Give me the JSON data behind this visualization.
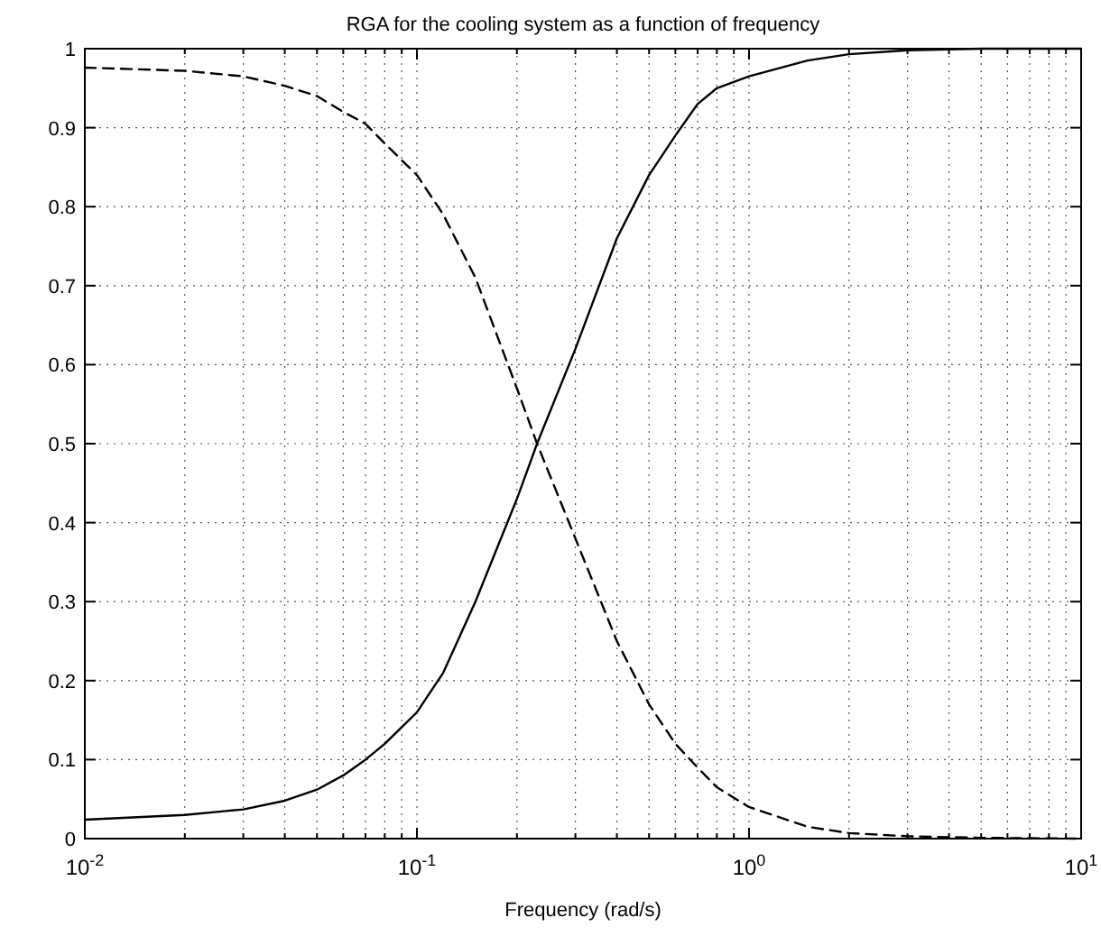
{
  "chart_data": {
    "type": "line",
    "title": "RGA for the cooling system as a function of frequency",
    "xlabel": "Frequency (rad/s)",
    "log": "x",
    "grid": true,
    "xlim": [
      0.01,
      10
    ],
    "ylim": [
      0,
      1
    ],
    "xticks": [
      {
        "value": 0.01,
        "label": "10$^{-2}$"
      },
      {
        "value": 0.02,
        "label": null
      },
      {
        "value": 0.03,
        "label": null
      },
      {
        "value": 0.04,
        "label": null
      },
      {
        "value": 0.05,
        "label": null
      },
      {
        "value": 0.06,
        "label": null
      },
      {
        "value": 0.07,
        "label": null
      },
      {
        "value": 0.08,
        "label": null
      },
      {
        "value": 0.09,
        "label": null
      },
      {
        "value": 0.1,
        "label": "10$^{-1}$"
      },
      {
        "value": 0.2,
        "label": null
      },
      {
        "value": 0.3,
        "label": null
      },
      {
        "value": 0.4,
        "label": null
      },
      {
        "value": 0.5,
        "label": null
      },
      {
        "value": 0.6,
        "label": null
      },
      {
        "value": 0.7,
        "label": null
      },
      {
        "value": 0.8,
        "label": null
      },
      {
        "value": 0.9,
        "label": null
      },
      {
        "value": 1,
        "label": "10$^{0}$"
      },
      {
        "value": 2,
        "label": null
      },
      {
        "value": 3,
        "label": null
      },
      {
        "value": 4,
        "label": null
      },
      {
        "value": 5,
        "label": null
      },
      {
        "value": 6,
        "label": null
      },
      {
        "value": 7,
        "label": null
      },
      {
        "value": 8,
        "label": null
      },
      {
        "value": 9,
        "label": null
      },
      {
        "value": 10,
        "label": "10$^{1}$"
      }
    ],
    "yticks": [
      0,
      0.1,
      0.2,
      0.3,
      0.4,
      0.5,
      0.6,
      0.7,
      0.8,
      0.9,
      1
    ],
    "x": [
      0.01,
      0.02,
      0.03,
      0.04,
      0.05,
      0.06,
      0.07,
      0.08,
      0.1,
      0.12,
      0.15,
      0.2,
      0.23,
      0.3,
      0.4,
      0.5,
      0.6,
      0.7,
      0.8,
      1,
      1.5,
      2,
      3,
      5,
      10
    ],
    "series": [
      {
        "color": "#000000",
        "line_style": "solid",
        "values": [
          0.024,
          0.03,
          0.037,
          0.048,
          0.062,
          0.08,
          0.1,
          0.12,
          0.16,
          0.21,
          0.3,
          0.43,
          0.5,
          0.62,
          0.76,
          0.84,
          0.89,
          0.93,
          0.95,
          0.965,
          0.985,
          0.993,
          0.998,
          1,
          1
        ]
      },
      {
        "color": "#000000",
        "line_style": "dashed",
        "values": [
          0.976,
          0.972,
          0.965,
          0.953,
          0.94,
          0.92,
          0.905,
          0.88,
          0.84,
          0.79,
          0.71,
          0.57,
          0.5,
          0.38,
          0.25,
          0.17,
          0.12,
          0.09,
          0.065,
          0.04,
          0.015,
          0.007,
          0.003,
          0.001,
          0
        ]
      }
    ]
  }
}
